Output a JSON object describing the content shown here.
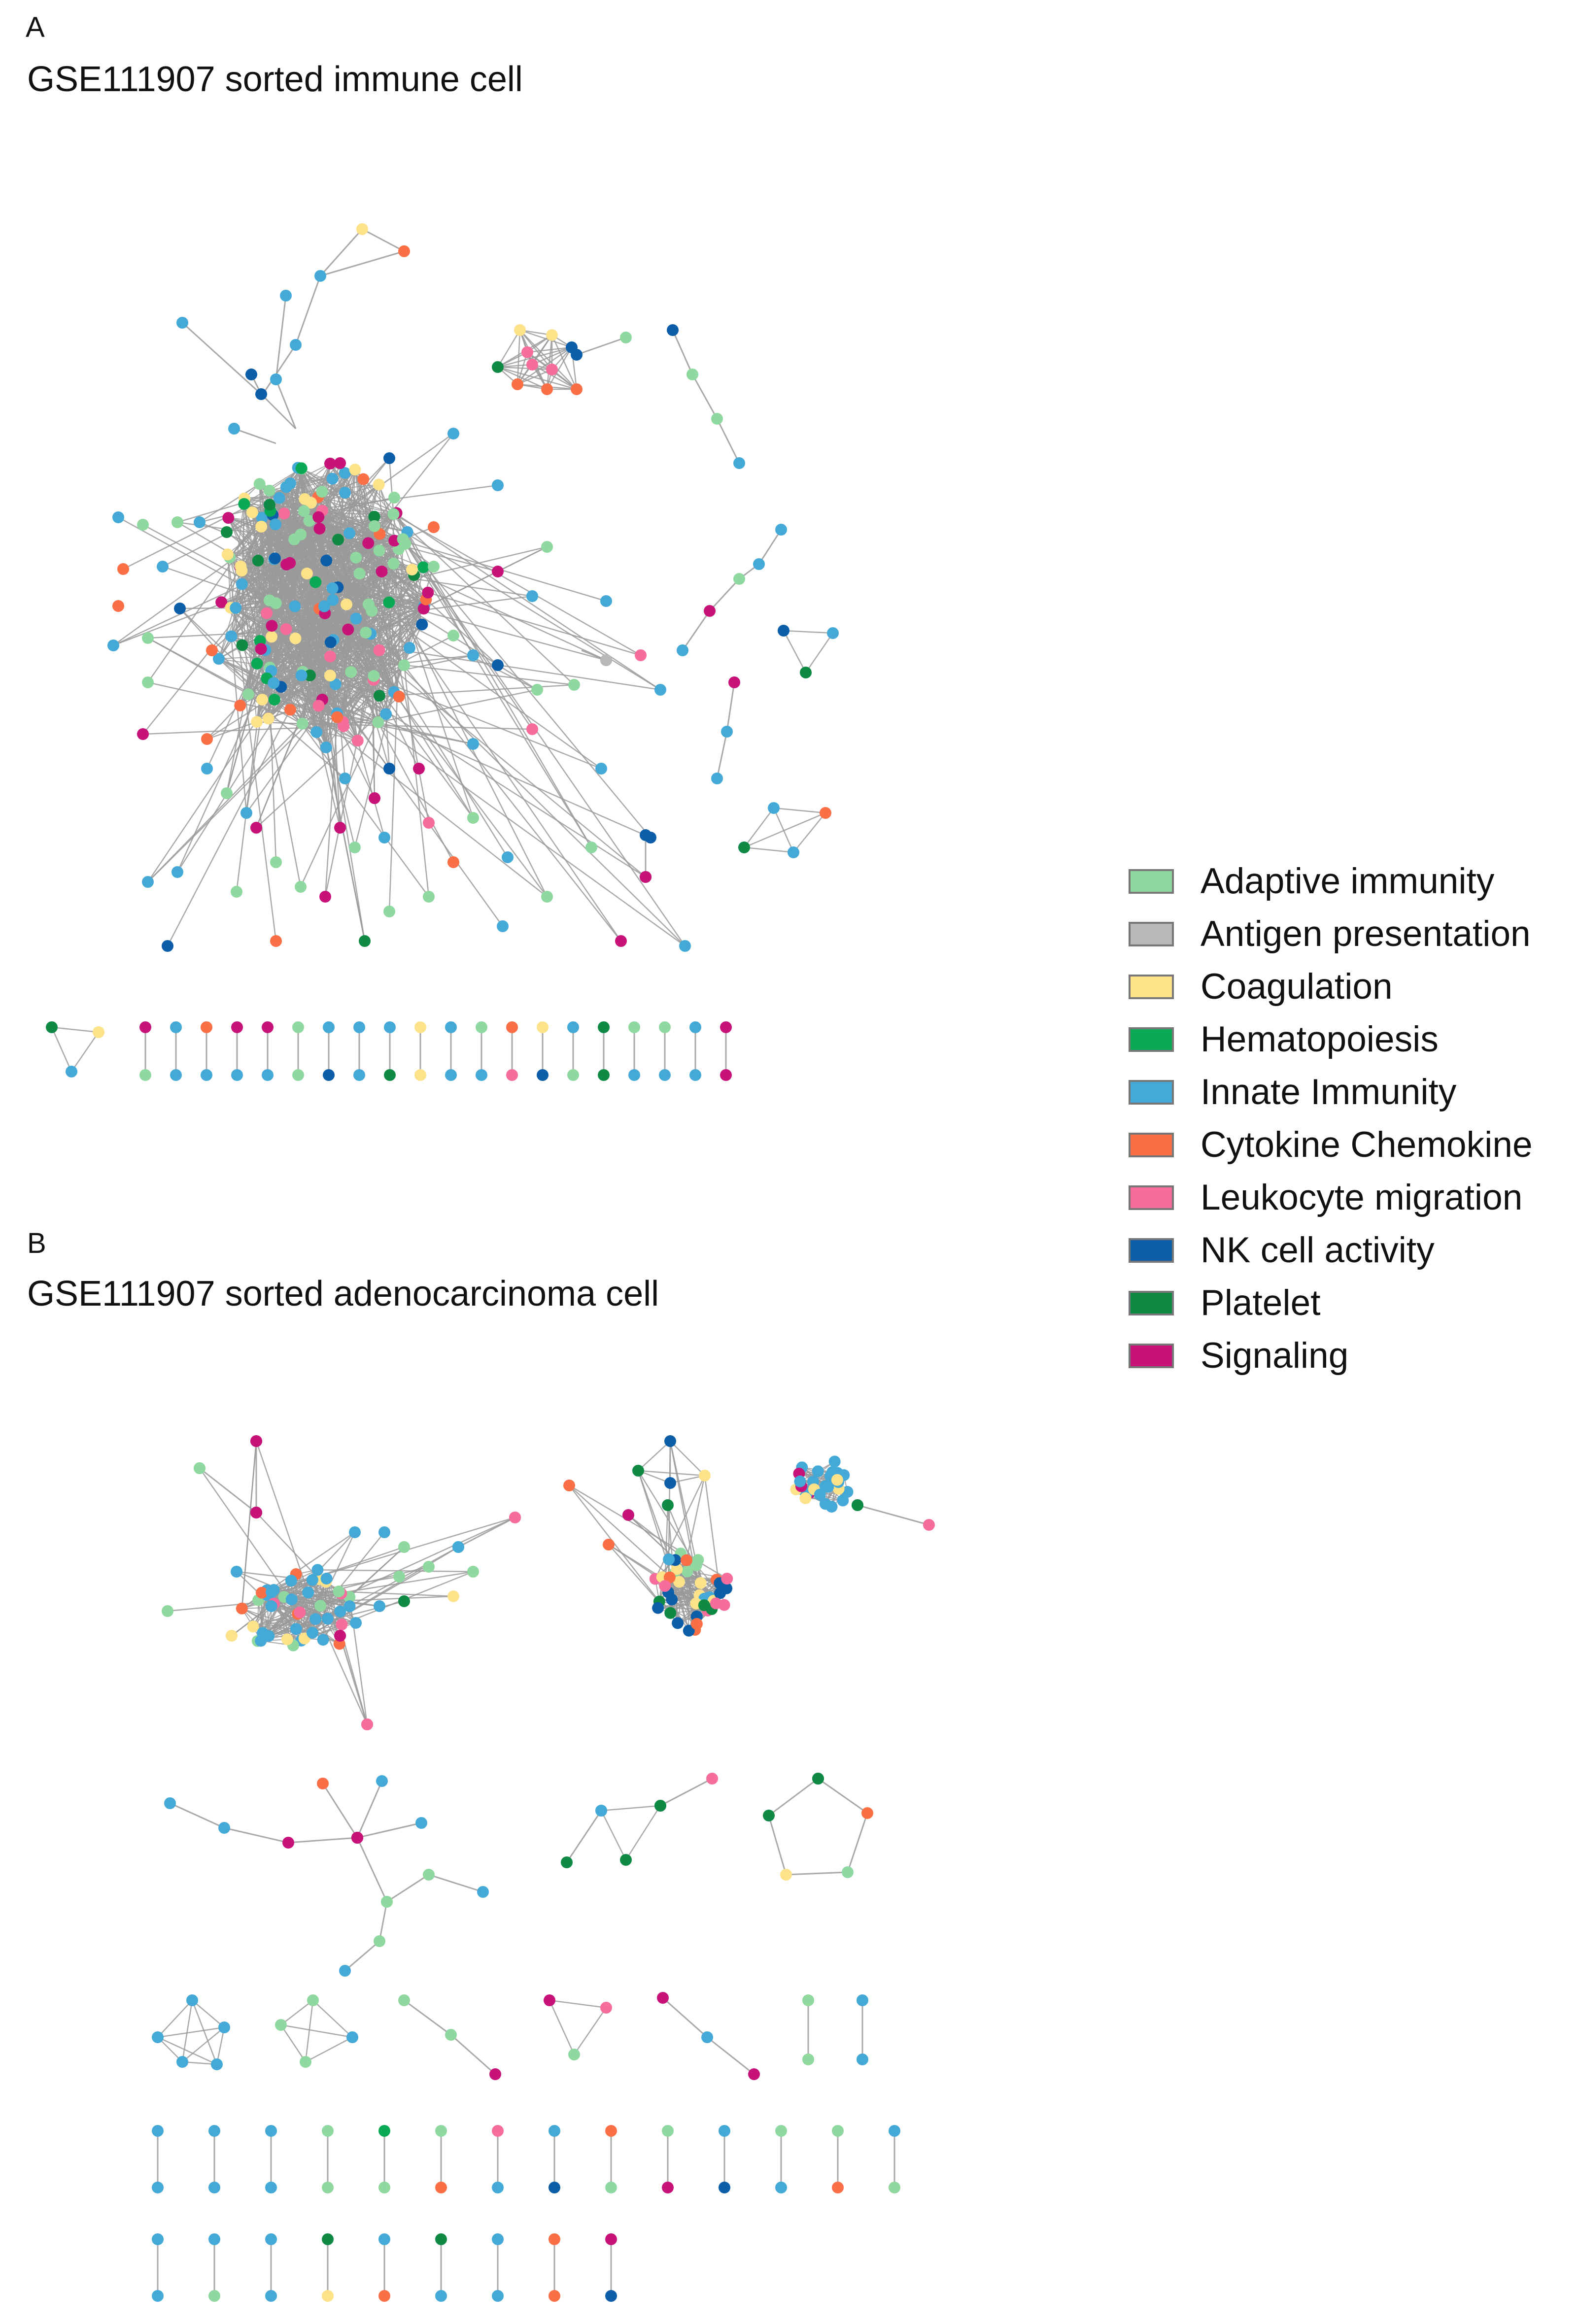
{
  "panels": [
    {
      "letter": "A",
      "title": "GSE111907 sorted immune cell"
    },
    {
      "letter": "B",
      "title": "GSE111907 sorted adenocarcinoma cell"
    }
  ],
  "legend": [
    {
      "label": "Adaptive immunity",
      "color": "#8fd8a0"
    },
    {
      "label": "Antigen presentation",
      "color": "#b8b8b8"
    },
    {
      "label": "Coagulation",
      "color": "#fde28a"
    },
    {
      "label": "Hematopoiesis",
      "color": "#0aa956"
    },
    {
      "label": "Innate Immunity",
      "color": "#44a9d6"
    },
    {
      "label": "Cytokine Chemokine",
      "color": "#fb6f47"
    },
    {
      "label": "Leukocyte migration",
      "color": "#f66d9d"
    },
    {
      "label": "NK cell activity",
      "color": "#0d5ea8"
    },
    {
      "label": "Platelet",
      "color": "#0f8a45"
    },
    {
      "label": "Signaling",
      "color": "#c7127a"
    }
  ],
  "edge_color": "#9a9a9a"
}
